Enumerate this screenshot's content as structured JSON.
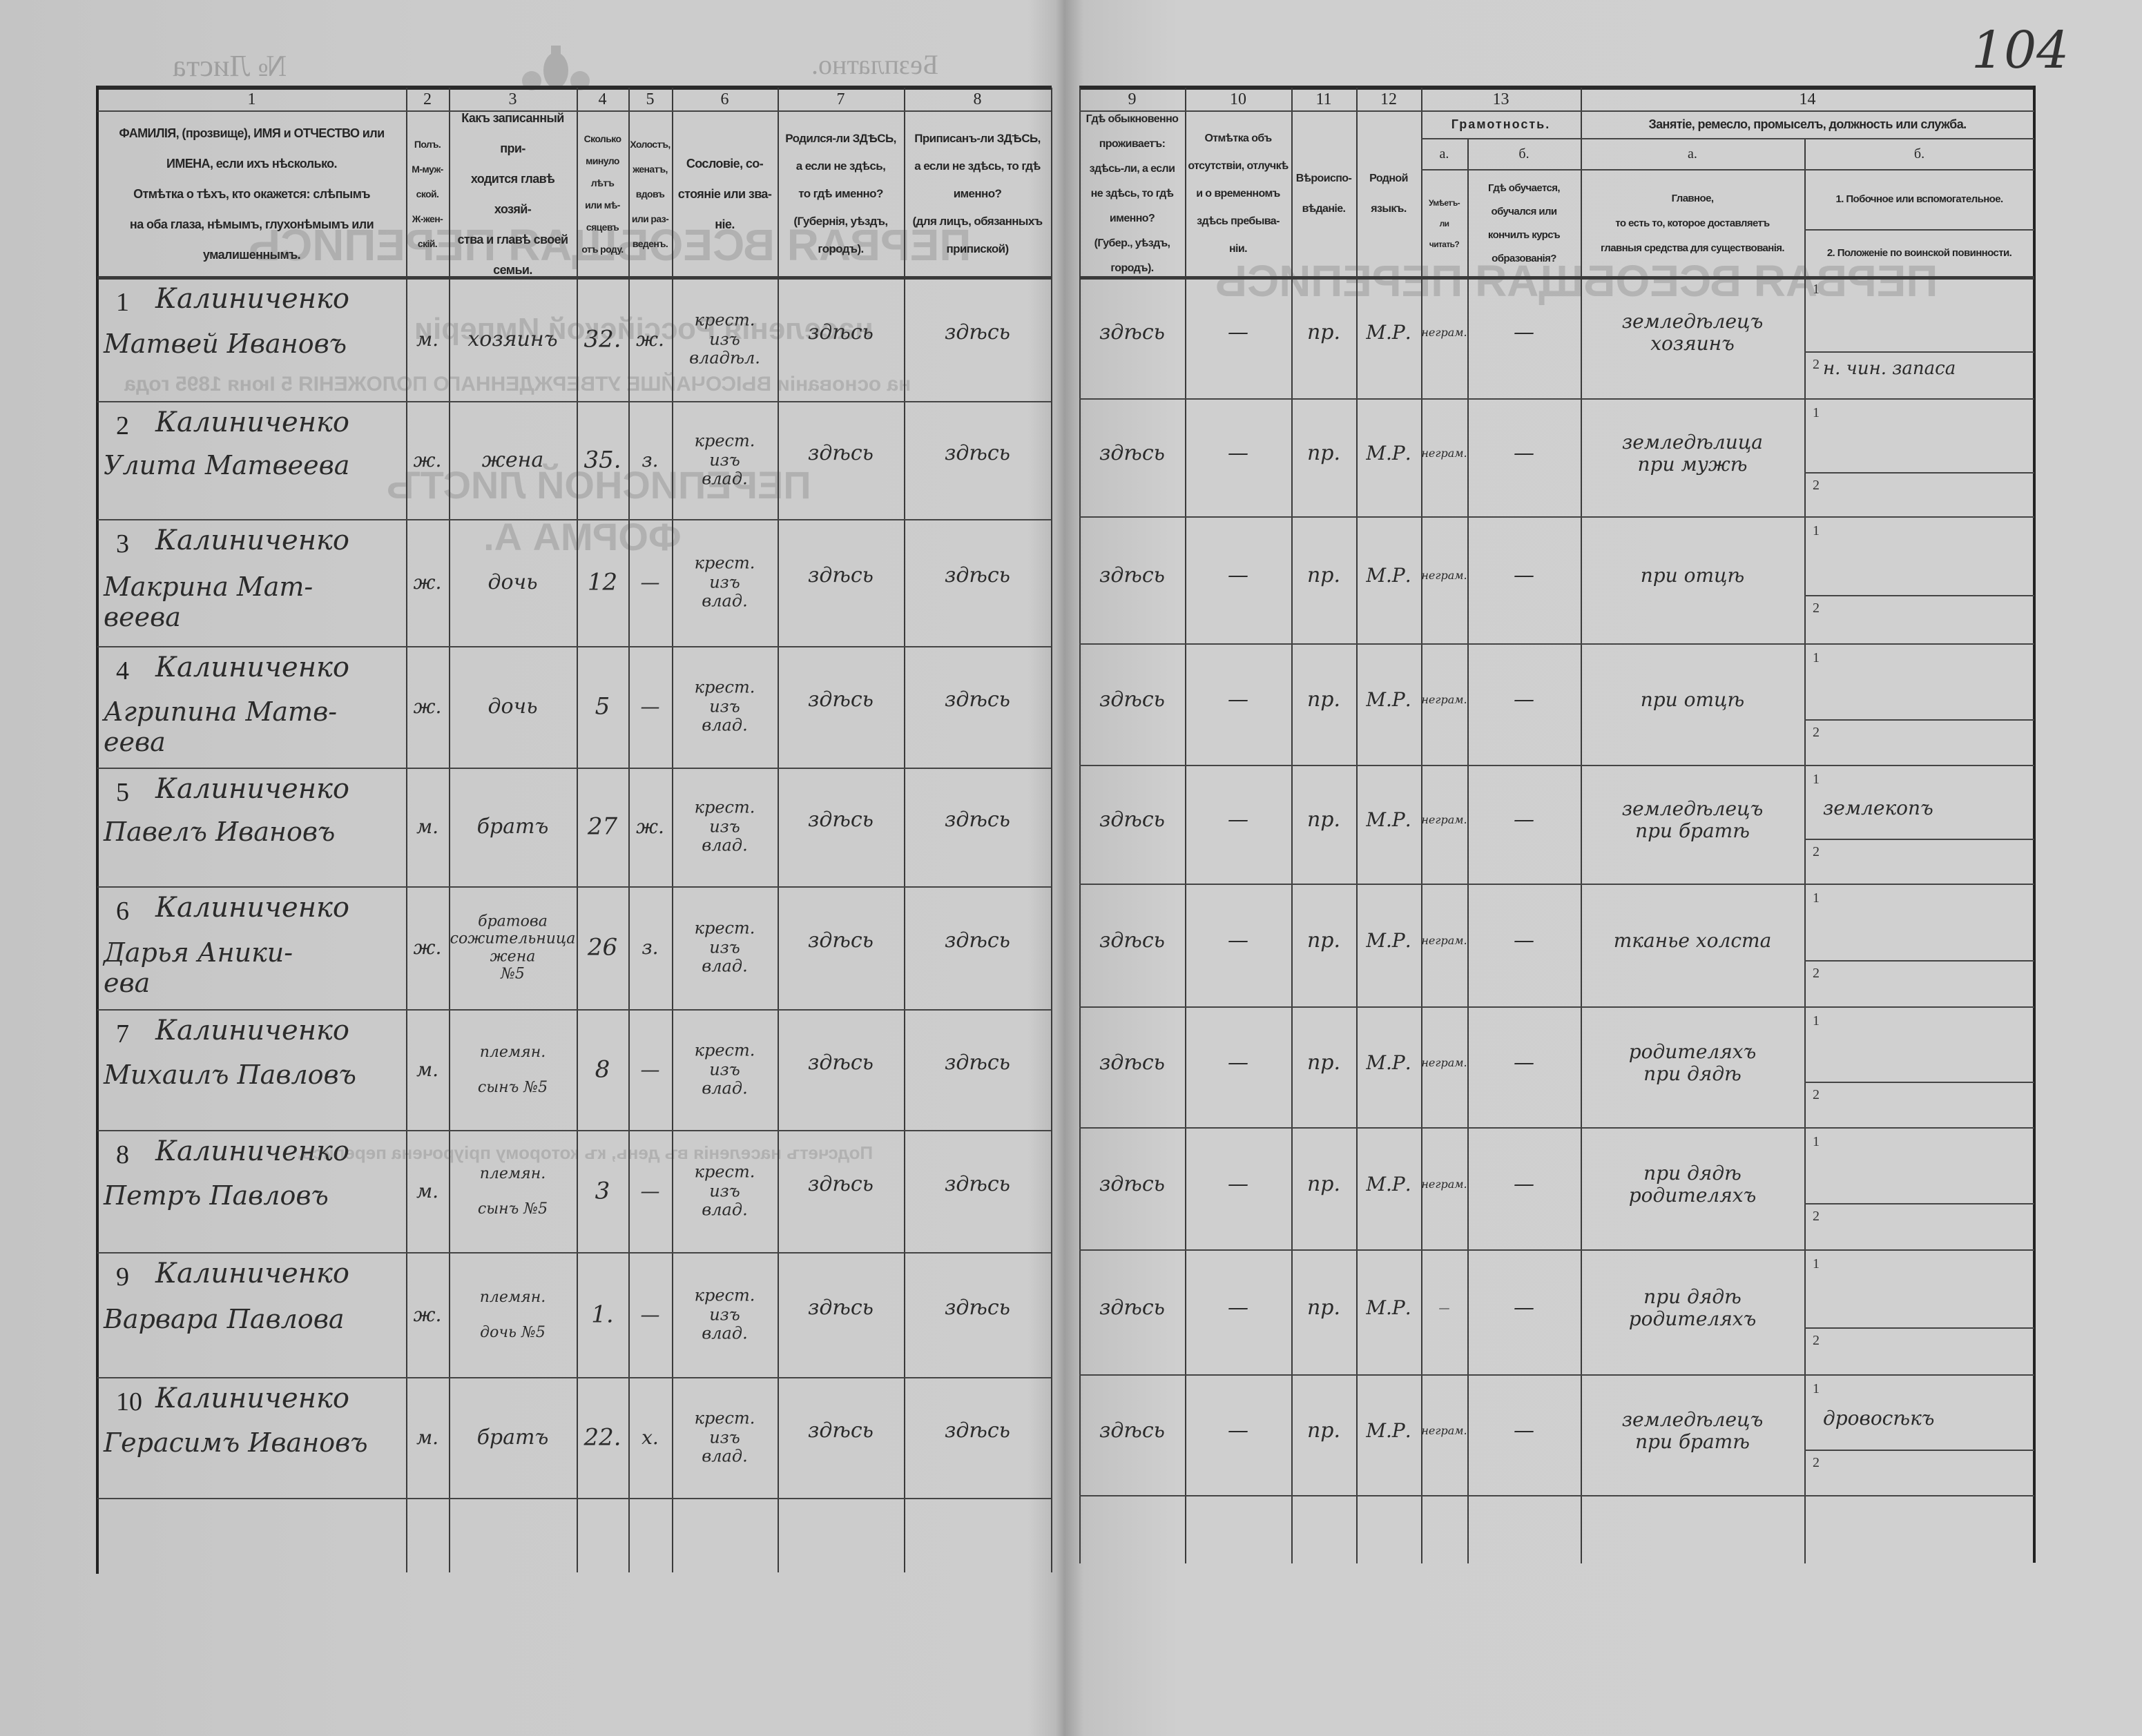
{
  "top": {
    "sheet_no_label": "№ Листа",
    "free_label": "Безплатно.",
    "page_number": "104"
  },
  "bleed_through": {
    "title": "ПЕРВАЯ ВСЕОБЩАЯ ПЕРЕПИСЬ",
    "subtitle": "населенія Россійской Имперіи",
    "basis": "на основаніи ВЫСОЧАЙШЕ УТВЕРЖДЕННАГО ПОЛОЖЕНІЯ 5 Іюня 1895 года",
    "sheet": "ПЕРЕПИСНОЙ ЛИСТЪ",
    "form": "ФОРМА А.",
    "totals": "Подсчетъ населенія въ день, къ которому пріурочена перепись."
  },
  "header": {
    "col_numbers": [
      "1",
      "2",
      "3",
      "4",
      "5",
      "6",
      "7",
      "8",
      "9",
      "10",
      "11",
      "12",
      "13",
      "14"
    ],
    "c1": "ФАМИЛІЯ, (прозвище), ИМЯ и ОТЧЕСТВО или\nИМЕНА, если ихъ нѣсколько.\nОтмѣтка о тѣхъ, кто окажется: слѣпымъ\nна оба глаза, нѣмымъ, глухонѣмымъ или\nумалишеннымъ.",
    "c2": "Полъ.\nМ-муж-\nской.\nЖ-жен-\nскій.",
    "c3": "Какъ записанный при-\nходится главѣ хозяй-\nства и главѣ своей\nсемьи.",
    "c4": "Сколько\nминуло\nлѣтъ\nили мѣ-\nсяцевъ\nотъ роду.",
    "c5": "Холостъ,\nженатъ,\nвдовъ\nили раз-\nведенъ.",
    "c6": "Сословіе, со-\nстояніе или зва-\nніе.",
    "c7": "Родился-ли ЗДѢСЬ,\nа если не здѣсь,\nто гдѣ именно?\n(Губернія, уѣздъ, городъ).",
    "c8": "Приписанъ-ли ЗДѢСЬ,\nа если не здѣсь, то гдѣ\nименно?\n(для лицъ, обязанныхъ\nприпиской)",
    "c9": "Гдѣ обыкновенно\nпроживаетъ:\nздѣсь-ли, а если\nне здѣсь, то гдѣ\nименно?\n(Губер., уѣздъ, городъ).",
    "c10": "Отмѣтка объ\nотсутствіи, отлучкѣ\nи о временномъ\nздѣсь пребыва-\nніи.",
    "c11": "Вѣроиспо-\nвѣданіе.",
    "c12": "Родной\nязыкъ.",
    "c13_title": "Грамотность.",
    "c13a_letter": "а.",
    "c13b_letter": "б.",
    "c13a": "Умѣетъ-\nли\nчитать?",
    "c13b": "Гдѣ обучается,\nобучался или\nкончилъ курсъ\nобразованія?",
    "c14_title": "Занятіе, ремесло, промыселъ, должность или служба.",
    "c14a_letter": "а.",
    "c14b_letter": "б.",
    "c14a": "Главное,\nто есть то, которое доставляетъ\nглавныя средства для существованія.",
    "c14b1": "1. Побочное или вспомогательное.",
    "c14b2": "2. Положеніе по воинской повинности."
  },
  "sub_labels": [
    "1",
    "2"
  ],
  "rows": [
    {
      "no": "1",
      "surname": "Калиниченко",
      "given": "Матвей Ивановъ",
      "sex": "м.",
      "relation": "хозяинъ",
      "age": "32.",
      "marital": "ж.",
      "estate": "крест.\nизъ\nвладѣл.",
      "born": "здѣсь",
      "registered": "здѣсь",
      "resides": "здѣсь",
      "absence": "—",
      "religion": "пр.",
      "language": "М.Р.",
      "reads": "неграм.",
      "schooling": "—",
      "occupation": "земледѣлецъ\nхозяинъ",
      "secondary": "",
      "military": "н. чин. запаса"
    },
    {
      "no": "2",
      "surname": "Калиниченко",
      "given": "Улита Матвеева",
      "sex": "ж.",
      "relation": "жена",
      "age": "35.",
      "marital": "з.",
      "estate": "крест.\nизъ\nвлад.",
      "born": "здѣсь",
      "registered": "здѣсь",
      "resides": "здѣсь",
      "absence": "—",
      "religion": "пр.",
      "language": "М.Р.",
      "reads": "неграм.",
      "schooling": "—",
      "occupation": "земледѣлица\nпри мужѣ",
      "secondary": "",
      "military": ""
    },
    {
      "no": "3",
      "surname": "Калиниченко",
      "given": "Макрина Мат-\nвеева",
      "sex": "ж.",
      "relation": "дочь",
      "age": "12",
      "marital": "—",
      "estate": "крест.\nизъ\nвлад.",
      "born": "здѣсь",
      "registered": "здѣсь",
      "resides": "здѣсь",
      "absence": "—",
      "religion": "пр.",
      "language": "М.Р.",
      "reads": "неграм.",
      "schooling": "—",
      "occupation": "при отцѣ",
      "secondary": "",
      "military": ""
    },
    {
      "no": "4",
      "surname": "Калиниченко",
      "given": "Агрипина Матв-\nеева",
      "sex": "ж.",
      "relation": "дочь",
      "age": "5",
      "marital": "—",
      "estate": "крест.\nизъ\nвлад.",
      "born": "здѣсь",
      "registered": "здѣсь",
      "resides": "здѣсь",
      "absence": "—",
      "religion": "пр.",
      "language": "М.Р.",
      "reads": "неграм.",
      "schooling": "—",
      "occupation": "при отцѣ",
      "secondary": "",
      "military": ""
    },
    {
      "no": "5",
      "surname": "Калиниченко",
      "given": "Павелъ Ивановъ",
      "sex": "м.",
      "relation": "братъ",
      "age": "27",
      "marital": "ж.",
      "estate": "крест.\nизъ\nвлад.",
      "born": "здѣсь",
      "registered": "здѣсь",
      "resides": "здѣсь",
      "absence": "—",
      "religion": "пр.",
      "language": "М.Р.",
      "reads": "неграм.",
      "schooling": "—",
      "occupation": "земледѣлецъ\nпри братѣ",
      "secondary": "землекопъ",
      "military": ""
    },
    {
      "no": "6",
      "surname": "Калиниченко",
      "given": "Дарья Аники-\nева",
      "sex": "ж.",
      "relation": "братова\nсожительница\nжена\n№5",
      "age": "26",
      "marital": "з.",
      "estate": "крест.\nизъ\nвлад.",
      "born": "здѣсь",
      "registered": "здѣсь",
      "resides": "здѣсь",
      "absence": "—",
      "religion": "пр.",
      "language": "М.Р.",
      "reads": "неграм.",
      "schooling": "—",
      "occupation": "тканье холста",
      "secondary": "",
      "military": ""
    },
    {
      "no": "7",
      "surname": "Калиниченко",
      "given": "Михаилъ Павловъ",
      "sex": "м.",
      "relation": "племян.\n\nсынъ №5",
      "age": "8",
      "marital": "—",
      "estate": "крест.\nизъ\nвлад.",
      "born": "здѣсь",
      "registered": "здѣсь",
      "resides": "здѣсь",
      "absence": "—",
      "religion": "пр.",
      "language": "М.Р.",
      "reads": "неграм.",
      "schooling": "—",
      "occupation": "родителяхъ\nпри дядѣ",
      "secondary": "",
      "military": ""
    },
    {
      "no": "8",
      "surname": "Калиниченко",
      "given": "Петръ Павловъ",
      "sex": "м.",
      "relation": "племян.\n\nсынъ №5",
      "age": "3",
      "marital": "—",
      "estate": "крест.\nизъ\nвлад.",
      "born": "здѣсь",
      "registered": "здѣсь",
      "resides": "здѣсь",
      "absence": "—",
      "religion": "пр.",
      "language": "М.Р.",
      "reads": "неграм.",
      "schooling": "—",
      "occupation": "при дядѣ\nродителяхъ",
      "secondary": "",
      "military": ""
    },
    {
      "no": "9",
      "surname": "Калиниченко",
      "given": "Варвара Павлова",
      "sex": "ж.",
      "relation": "племян.\n\nдочь №5",
      "age": "1.",
      "marital": "—",
      "estate": "крест.\nизъ\nвлад.",
      "born": "здѣсь",
      "registered": "здѣсь",
      "resides": "здѣсь",
      "absence": "—",
      "religion": "пр.",
      "language": "М.Р.",
      "reads": "—",
      "schooling": "—",
      "occupation": "при дядѣ\nродителяхъ",
      "secondary": "",
      "military": ""
    },
    {
      "no": "10",
      "surname": "Калиниченко",
      "given": "Герасимъ Ивановъ",
      "sex": "м.",
      "relation": "братъ",
      "age": "22.",
      "marital": "х.",
      "estate": "крест.\nизъ\nвлад.",
      "born": "здѣсь",
      "registered": "здѣсь",
      "resides": "здѣсь",
      "absence": "—",
      "religion": "пр.",
      "language": "М.Р.",
      "reads": "неграм.",
      "schooling": "—",
      "occupation": "земледѣлецъ\nпри братѣ",
      "secondary": "дровосѣкъ",
      "military": ""
    }
  ]
}
